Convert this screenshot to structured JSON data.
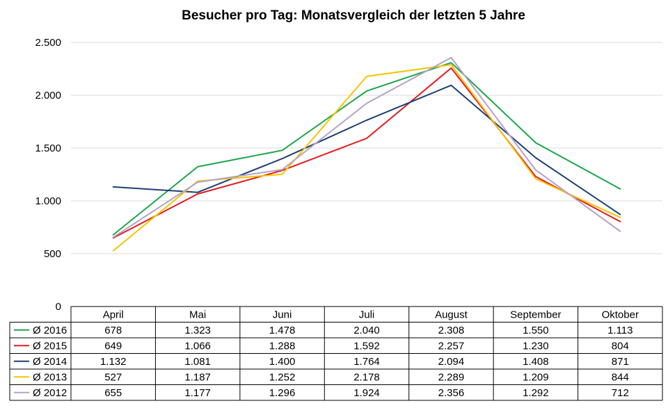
{
  "chart_data": {
    "type": "line",
    "title": "Besucher pro Tag: Monatsvergleich der letzten 5 Jahre",
    "categories": [
      "April",
      "Mai",
      "Juni",
      "Juli",
      "August",
      "September",
      "Oktober"
    ],
    "ylim": [
      0,
      2500
    ],
    "yticks": [
      0,
      500,
      1000,
      1500,
      2000,
      2500
    ],
    "ytick_labels": [
      "0",
      "500",
      "1.000",
      "1.500",
      "2.000",
      "2.500"
    ],
    "grid": true,
    "legend": "data-table",
    "series": [
      {
        "name": "Ø 2016",
        "color": "#1aa64b",
        "values": [
          678,
          1323,
          1478,
          2040,
          2308,
          1550,
          1113
        ],
        "labels": [
          "678",
          "1.323",
          "1.478",
          "2.040",
          "2.308",
          "1.550",
          "1.113"
        ]
      },
      {
        "name": "Ø 2015",
        "color": "#e41a1c",
        "values": [
          649,
          1066,
          1288,
          1592,
          2257,
          1230,
          804
        ],
        "labels": [
          "649",
          "1.066",
          "1.288",
          "1.592",
          "2.257",
          "1.230",
          "804"
        ]
      },
      {
        "name": "Ø 2014",
        "color": "#1f3f73",
        "values": [
          1132,
          1081,
          1400,
          1764,
          2094,
          1408,
          871
        ],
        "labels": [
          "1.132",
          "1.081",
          "1.400",
          "1.764",
          "2.094",
          "1.408",
          "871"
        ]
      },
      {
        "name": "Ø 2013",
        "color": "#f5c400",
        "values": [
          527,
          1187,
          1252,
          2178,
          2289,
          1209,
          844
        ],
        "labels": [
          "527",
          "1.187",
          "1.252",
          "2.178",
          "2.289",
          "1.209",
          "844"
        ]
      },
      {
        "name": "Ø 2012",
        "color": "#b3a2c8",
        "values": [
          655,
          1177,
          1296,
          1924,
          2356,
          1292,
          712
        ],
        "labels": [
          "655",
          "1.177",
          "1.296",
          "1.924",
          "2.356",
          "1.292",
          "712"
        ]
      }
    ]
  }
}
